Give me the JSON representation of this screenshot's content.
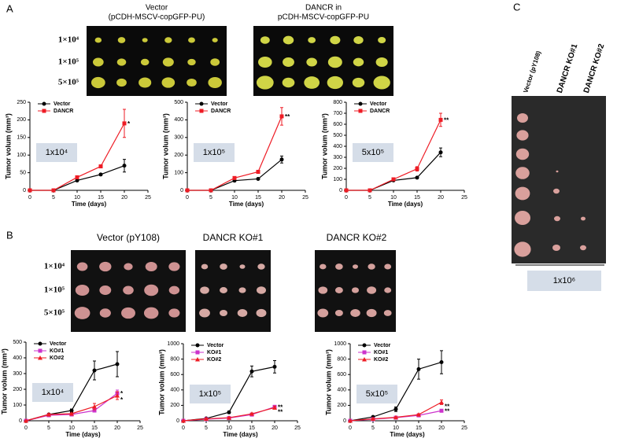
{
  "labels": {
    "a": "A",
    "b": "B",
    "c": "C"
  },
  "photos": [
    {
      "caption": [
        "Vector",
        "(pCDH-MSCV-copGFP-PU)"
      ],
      "rows": [
        "1×10⁴",
        "1×10⁵",
        "5×10⁵"
      ]
    },
    {
      "caption": [
        "DANCR in",
        "pCDH-MSCV-copGFP-PU"
      ]
    },
    {
      "caption": [
        "Vector (pY108)"
      ],
      "rows": [
        "1×10⁴",
        "1×10⁵",
        "5×10⁵"
      ]
    },
    {
      "caption": [
        "DANCR KO#1"
      ]
    },
    {
      "caption": [
        "DANCR KO#2"
      ]
    }
  ],
  "panel_c": {
    "columns": [
      "Vector (pY108)",
      "DANCR KO#1",
      "DANCR KO#2"
    ],
    "dose": "1x10⁶"
  },
  "chart_data": [
    {
      "type": "line",
      "box_label": "1x10⁴",
      "x_label": "Time (days)",
      "y_label": "Tumor volum (mm³)",
      "x": [
        0,
        5,
        10,
        15,
        20
      ],
      "xlim": [
        0,
        25
      ],
      "xticks": [
        0,
        5,
        10,
        15,
        20,
        25
      ],
      "ylim": [
        0,
        250
      ],
      "yticks": [
        0,
        50,
        100,
        150,
        200,
        250
      ],
      "annotations": [
        "*"
      ],
      "series": [
        {
          "name": "Vector",
          "color": "#000000",
          "marker": "circle",
          "values": [
            0,
            0,
            28,
            45,
            70
          ],
          "errors": [
            0,
            0,
            3,
            3,
            18
          ]
        },
        {
          "name": "DANCR",
          "color": "#ee1c25",
          "marker": "square",
          "values": [
            0,
            0,
            37,
            68,
            190
          ],
          "errors": [
            0,
            0,
            4,
            4,
            40
          ]
        }
      ]
    },
    {
      "type": "line",
      "box_label": "1x10⁵",
      "x_label": "Time (days)",
      "y_label": "Tumor volum (mm³)",
      "x": [
        0,
        5,
        10,
        15,
        20
      ],
      "xlim": [
        0,
        25
      ],
      "xticks": [
        0,
        5,
        10,
        15,
        20,
        25
      ],
      "ylim": [
        0,
        500
      ],
      "yticks": [
        0,
        100,
        200,
        300,
        400,
        500
      ],
      "annotations": [
        "**"
      ],
      "series": [
        {
          "name": "Vector",
          "color": "#000000",
          "marker": "circle",
          "values": [
            0,
            0,
            55,
            65,
            175
          ],
          "errors": [
            0,
            0,
            5,
            5,
            20
          ]
        },
        {
          "name": "DANCR",
          "color": "#ee1c25",
          "marker": "square",
          "values": [
            0,
            0,
            70,
            105,
            420
          ],
          "errors": [
            0,
            0,
            8,
            8,
            50
          ]
        }
      ]
    },
    {
      "type": "line",
      "box_label": "5x10⁵",
      "x_label": "Time (days)",
      "y_label": "Tumor volum (mm³)",
      "x": [
        0,
        5,
        10,
        15,
        20
      ],
      "xlim": [
        0,
        25
      ],
      "xticks": [
        0,
        5,
        10,
        15,
        20,
        25
      ],
      "ylim": [
        0,
        800
      ],
      "yticks": [
        0,
        100,
        200,
        300,
        400,
        500,
        600,
        700,
        800
      ],
      "annotations": [
        "**"
      ],
      "series": [
        {
          "name": "Vector",
          "color": "#000000",
          "marker": "circle",
          "values": [
            0,
            0,
            90,
            115,
            345
          ],
          "errors": [
            0,
            0,
            8,
            8,
            40
          ]
        },
        {
          "name": "DANCR",
          "color": "#ee1c25",
          "marker": "square",
          "values": [
            0,
            0,
            100,
            195,
            640
          ],
          "errors": [
            0,
            0,
            10,
            20,
            60
          ]
        }
      ]
    },
    {
      "type": "line",
      "box_label": "1x10⁴",
      "x_label": "Time (days)",
      "y_label": "Tumor volum (mm³)",
      "x": [
        0,
        5,
        10,
        15,
        20
      ],
      "xlim": [
        0,
        25
      ],
      "xticks": [
        0,
        5,
        10,
        15,
        20,
        25
      ],
      "ylim": [
        0,
        500
      ],
      "yticks": [
        0,
        100,
        200,
        300,
        400,
        500
      ],
      "annotations": [
        "*",
        "*"
      ],
      "series": [
        {
          "name": "Vector",
          "color": "#000000",
          "marker": "circle",
          "values": [
            0,
            40,
            65,
            320,
            360
          ],
          "errors": [
            0,
            5,
            10,
            60,
            80
          ]
        },
        {
          "name": "KO#1",
          "color": "#cc33cc",
          "marker": "square",
          "values": [
            0,
            35,
            40,
            65,
            175
          ],
          "errors": [
            0,
            5,
            5,
            10,
            20
          ]
        },
        {
          "name": "KO#2",
          "color": "#ee1c25",
          "marker": "triangle",
          "values": [
            0,
            40,
            45,
            90,
            160
          ],
          "errors": [
            0,
            5,
            5,
            20,
            25
          ]
        }
      ]
    },
    {
      "type": "line",
      "box_label": "1x10⁵",
      "x_label": "Time (days)",
      "y_label": "Tumor volum (mm³)",
      "x": [
        0,
        5,
        10,
        15,
        20
      ],
      "xlim": [
        0,
        25
      ],
      "xticks": [
        0,
        5,
        10,
        15,
        20,
        25
      ],
      "ylim": [
        0,
        1000
      ],
      "yticks": [
        0,
        200,
        400,
        600,
        800,
        1000
      ],
      "annotations": [
        "**",
        "**"
      ],
      "series": [
        {
          "name": "Vector",
          "color": "#000000",
          "marker": "circle",
          "values": [
            0,
            30,
            110,
            640,
            700
          ],
          "errors": [
            0,
            10,
            15,
            70,
            80
          ]
        },
        {
          "name": "KO#1",
          "color": "#cc33cc",
          "marker": "square",
          "values": [
            0,
            20,
            35,
            80,
            180
          ],
          "errors": [
            0,
            5,
            5,
            10,
            20
          ]
        },
        {
          "name": "KO#2",
          "color": "#ee1c25",
          "marker": "triangle",
          "values": [
            0,
            25,
            40,
            90,
            170
          ],
          "errors": [
            0,
            5,
            5,
            10,
            20
          ]
        }
      ]
    },
    {
      "type": "line",
      "box_label": "5x10⁵",
      "x_label": "Time (days)",
      "y_label": "Tumor volum (mm³)",
      "x": [
        0,
        5,
        10,
        15,
        20
      ],
      "xlim": [
        0,
        25
      ],
      "xticks": [
        0,
        5,
        10,
        15,
        20,
        25
      ],
      "ylim": [
        0,
        1000
      ],
      "yticks": [
        0,
        200,
        400,
        600,
        800,
        1000
      ],
      "annotations": [
        "**",
        "**"
      ],
      "series": [
        {
          "name": "Vector",
          "color": "#000000",
          "marker": "circle",
          "values": [
            0,
            50,
            150,
            670,
            760
          ],
          "errors": [
            0,
            10,
            30,
            130,
            150
          ]
        },
        {
          "name": "KO#1",
          "color": "#cc33cc",
          "marker": "square",
          "values": [
            0,
            20,
            40,
            70,
            130
          ],
          "errors": [
            0,
            5,
            5,
            10,
            15
          ]
        },
        {
          "name": "KO#2",
          "color": "#ee1c25",
          "marker": "triangle",
          "values": [
            0,
            25,
            45,
            80,
            240
          ],
          "errors": [
            0,
            5,
            5,
            10,
            30
          ]
        }
      ]
    }
  ]
}
